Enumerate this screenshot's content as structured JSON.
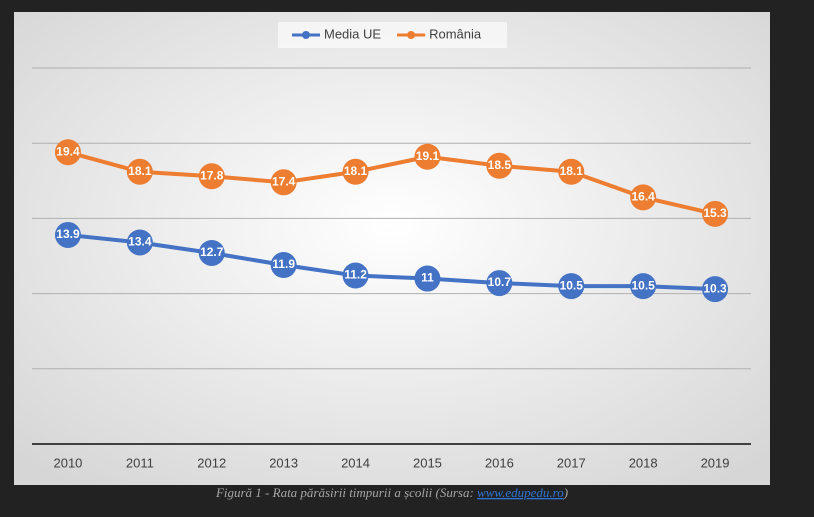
{
  "chart_data": {
    "type": "line",
    "categories": [
      "2010",
      "2011",
      "2012",
      "2013",
      "2014",
      "2015",
      "2016",
      "2017",
      "2018",
      "2019"
    ],
    "series": [
      {
        "name": "Media UE",
        "color": "#4472c4",
        "values": [
          13.9,
          13.4,
          12.7,
          11.9,
          11.2,
          11,
          10.7,
          10.5,
          10.5,
          10.3
        ]
      },
      {
        "name": "România",
        "color": "#ed7d31",
        "values": [
          19.4,
          18.1,
          17.8,
          17.4,
          18.1,
          19.1,
          18.5,
          18.1,
          16.4,
          15.3
        ]
      }
    ],
    "ylim": [
      0,
      25
    ],
    "yticks": [
      0,
      5,
      10,
      15,
      20,
      25
    ],
    "grid": true,
    "legend": "top"
  },
  "caption": {
    "text": "Figură 1 - Rata părăsirii timpurii a școlii (Sursa: ",
    "link": "www.edupedu.ro",
    "end": ")"
  }
}
